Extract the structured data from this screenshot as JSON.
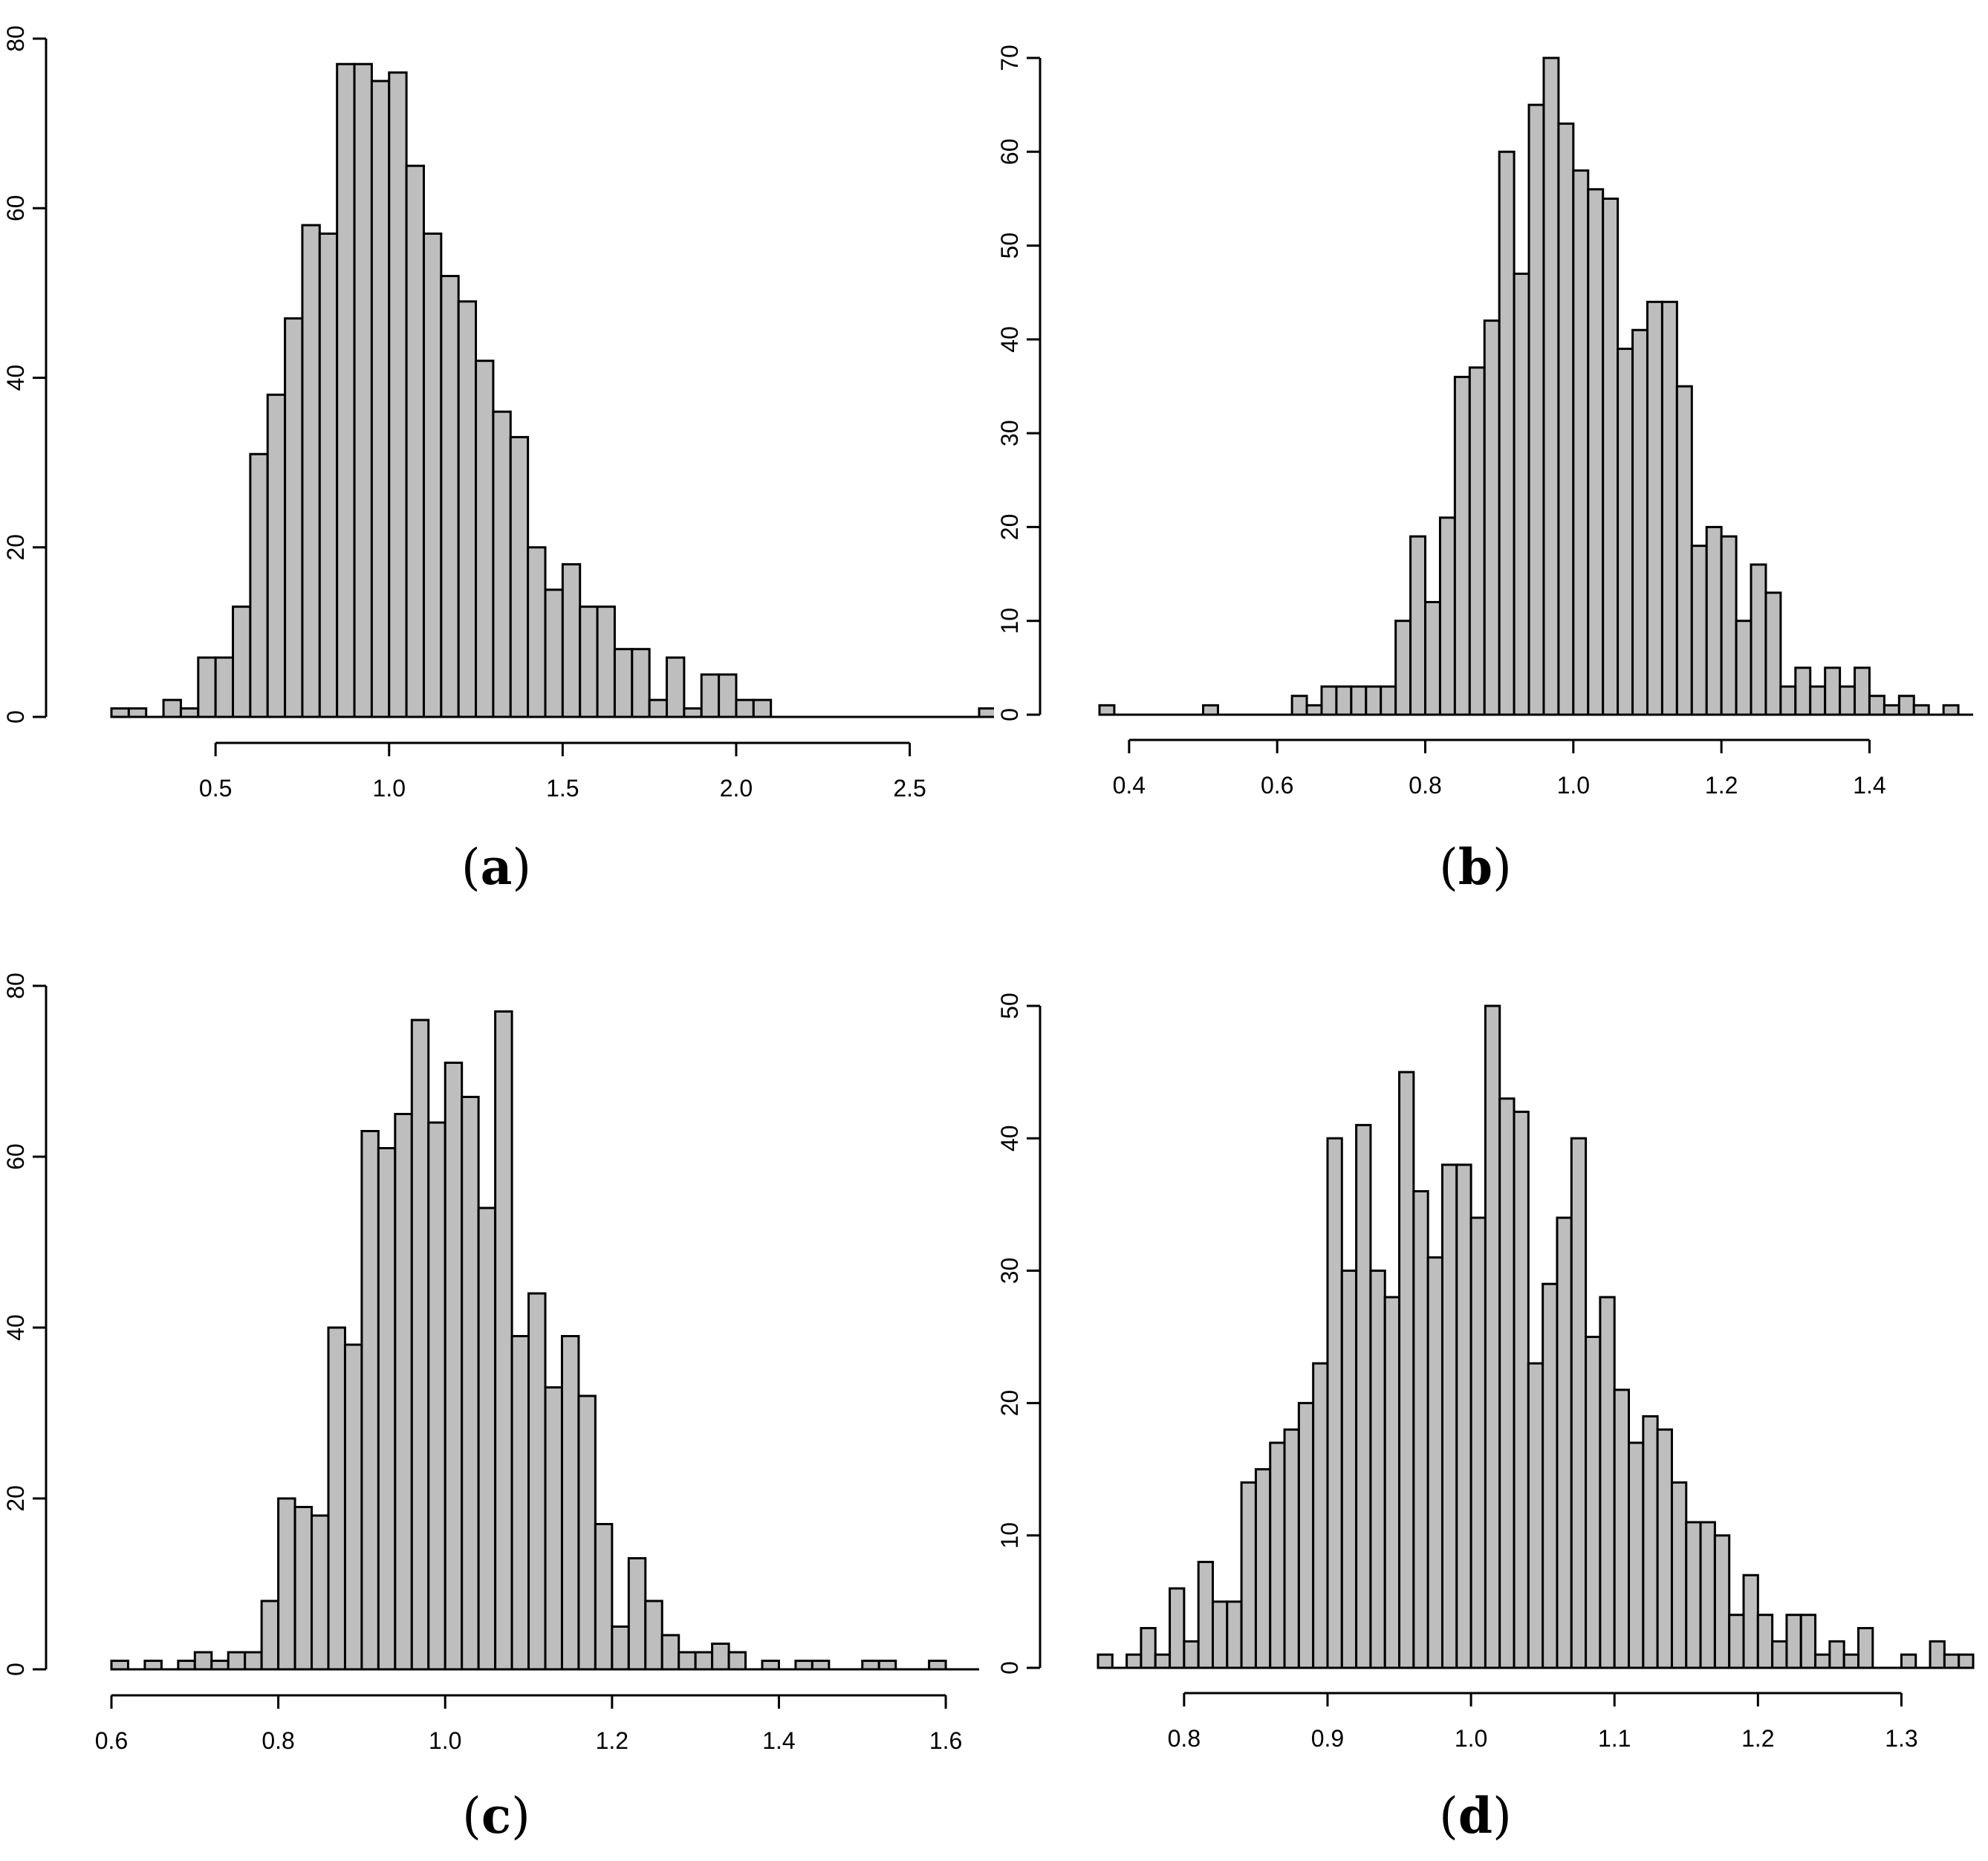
{
  "figure": {
    "panels": [
      {
        "id": "a",
        "label": "(a)"
      },
      {
        "id": "b",
        "label": "(b)"
      },
      {
        "id": "c",
        "label": "(c)"
      },
      {
        "id": "d",
        "label": "(d)"
      }
    ]
  },
  "chart_data": [
    {
      "id": "a",
      "type": "bar",
      "panel_label": "(a)",
      "bin_edges_start": 0.2,
      "bin_width": 0.05,
      "values": [
        1,
        1,
        0,
        2,
        1,
        7,
        7,
        13,
        31,
        38,
        47,
        58,
        57,
        77,
        77,
        75,
        76,
        65,
        57,
        52,
        49,
        42,
        36,
        33,
        20,
        15,
        18,
        13,
        13,
        8,
        8,
        2,
        7,
        1,
        5,
        5,
        2,
        2,
        0,
        0,
        0,
        0,
        0,
        0,
        0,
        0,
        0,
        0,
        0,
        0,
        1
      ],
      "xlim": [
        0.2,
        2.7
      ],
      "ylim": [
        0,
        80
      ],
      "x_ticks": [
        0.5,
        1.0,
        1.5,
        2.0,
        2.5
      ],
      "x_tick_labels": [
        "0.5",
        "1.0",
        "1.5",
        "2.0",
        "2.5"
      ],
      "y_ticks": [
        0,
        20,
        40,
        60,
        80
      ],
      "y_tick_labels": [
        "0",
        "20",
        "40",
        "60",
        "80"
      ]
    },
    {
      "id": "b",
      "type": "bar",
      "panel_label": "(b)",
      "bin_edges_start": 0.36,
      "bin_width": 0.02,
      "values": [
        1,
        0,
        0,
        0,
        0,
        0,
        0,
        1,
        0,
        0,
        0,
        0,
        0,
        2,
        1,
        3,
        3,
        3,
        3,
        3,
        10,
        19,
        12,
        21,
        36,
        37,
        42,
        60,
        47,
        65,
        70,
        63,
        58,
        56,
        55,
        39,
        41,
        44,
        44,
        35,
        18,
        20,
        19,
        10,
        16,
        13,
        3,
        5,
        3,
        5,
        3,
        5,
        2,
        1,
        2,
        1,
        0,
        1
      ],
      "xlim": [
        0.36,
        1.54
      ],
      "ylim": [
        0,
        70
      ],
      "x_ticks": [
        0.4,
        0.6,
        0.8,
        1.0,
        1.2,
        1.4
      ],
      "x_tick_labels": [
        "0.4",
        "0.6",
        "0.8",
        "1.0",
        "1.2",
        "1.4"
      ],
      "y_ticks": [
        0,
        10,
        20,
        30,
        40,
        50,
        60,
        70
      ],
      "y_tick_labels": [
        "0",
        "10",
        "20",
        "30",
        "40",
        "50",
        "60",
        "70"
      ]
    },
    {
      "id": "c",
      "type": "bar",
      "panel_label": "(c)",
      "bin_edges_start": 0.6,
      "bin_width": 0.02,
      "values": [
        1,
        0,
        1,
        0,
        1,
        2,
        1,
        2,
        2,
        8,
        20,
        19,
        18,
        40,
        38,
        63,
        61,
        65,
        76,
        64,
        71,
        67,
        54,
        77,
        39,
        44,
        33,
        39,
        32,
        17,
        5,
        13,
        8,
        4,
        2,
        2,
        3,
        2,
        0,
        1,
        0,
        1,
        1,
        0,
        0,
        1,
        1,
        0,
        0,
        1
      ],
      "xlim": [
        0.6,
        1.64
      ],
      "ylim": [
        0,
        80
      ],
      "x_ticks": [
        0.6,
        0.8,
        1.0,
        1.2,
        1.4,
        1.6
      ],
      "x_tick_labels": [
        "0.6",
        "0.8",
        "1.0",
        "1.2",
        "1.4",
        "1.6"
      ],
      "y_ticks": [
        0,
        20,
        40,
        60,
        80
      ],
      "y_tick_labels": [
        "0",
        "20",
        "40",
        "60",
        "80"
      ]
    },
    {
      "id": "d",
      "type": "bar",
      "panel_label": "(d)",
      "bin_edges_start": 0.74,
      "bin_width": 0.01,
      "values": [
        1,
        0,
        1,
        3,
        1,
        6,
        2,
        8,
        5,
        5,
        14,
        15,
        17,
        18,
        20,
        23,
        40,
        30,
        41,
        30,
        28,
        45,
        36,
        31,
        38,
        38,
        34,
        50,
        43,
        42,
        23,
        29,
        34,
        40,
        25,
        28,
        21,
        17,
        19,
        18,
        14,
        11,
        11,
        10,
        4,
        7,
        4,
        2,
        4,
        4,
        1,
        2,
        1,
        3,
        0,
        0,
        1,
        0,
        2,
        1,
        1
      ],
      "xlim": [
        0.74,
        1.35
      ],
      "ylim": [
        0,
        50
      ],
      "x_ticks": [
        0.8,
        0.9,
        1.0,
        1.1,
        1.2,
        1.3
      ],
      "x_tick_labels": [
        "0.8",
        "0.9",
        "1.0",
        "1.1",
        "1.2",
        "1.3"
      ],
      "y_ticks": [
        0,
        10,
        20,
        30,
        40,
        50
      ],
      "y_tick_labels": [
        "0",
        "10",
        "20",
        "30",
        "40",
        "50"
      ]
    }
  ]
}
